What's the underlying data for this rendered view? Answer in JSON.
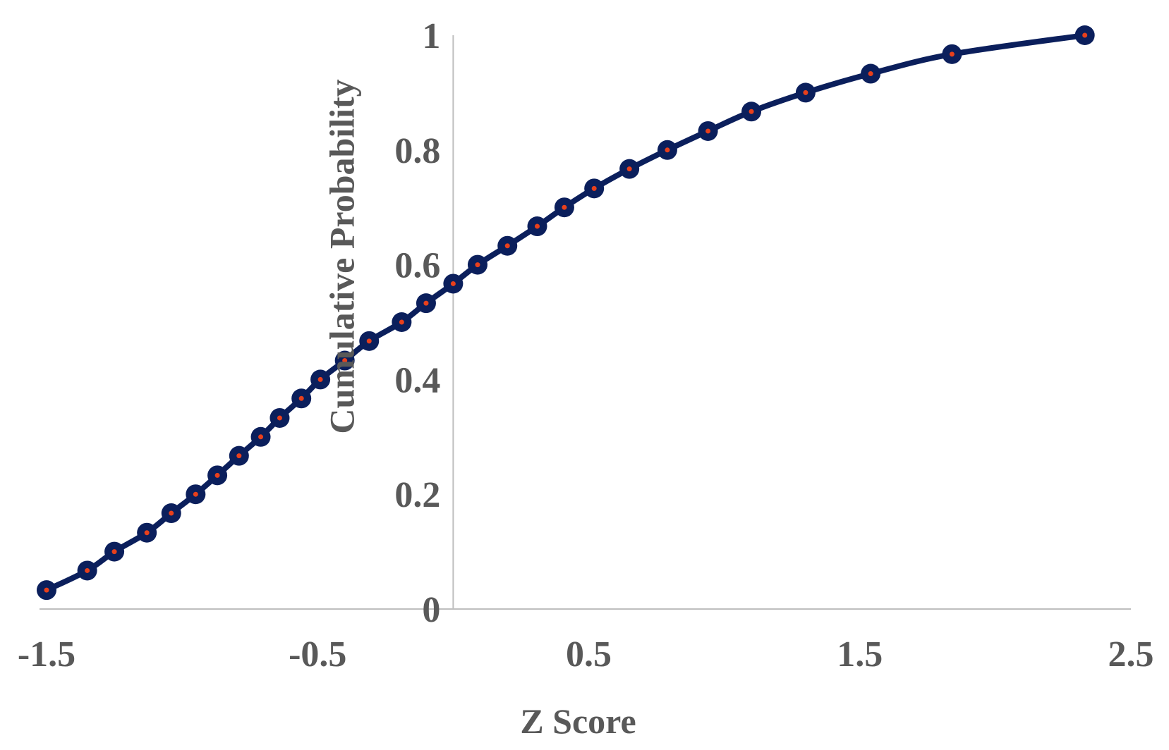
{
  "chart_data": {
    "type": "scatter",
    "title": "",
    "xlabel": "Z Score",
    "ylabel": "Cumulative Probability",
    "xlim": [
      -1.5,
      2.5
    ],
    "ylim": [
      0,
      1
    ],
    "x_ticks": [
      "-1.5",
      "-0.5",
      "0.5",
      "1.5",
      "2.5"
    ],
    "y_ticks": [
      "0",
      "0.2",
      "0.4",
      "0.6",
      "0.8",
      "1"
    ],
    "grid": false,
    "legend": "none",
    "series": [
      {
        "line_color": "#0b1f5c",
        "marker_color": "#0b1f5c",
        "marker_center_color": "#e8401c",
        "x": [
          -1.5,
          -1.35,
          -1.25,
          -1.13,
          -1.04,
          -0.95,
          -0.87,
          -0.79,
          -0.71,
          -0.64,
          -0.56,
          -0.49,
          -0.4,
          -0.31,
          -0.19,
          -0.1,
          0.0,
          0.09,
          0.2,
          0.31,
          0.41,
          0.52,
          0.65,
          0.79,
          0.94,
          1.1,
          1.3,
          1.54,
          1.84,
          2.33
        ],
        "y": [
          0.033,
          0.067,
          0.1,
          0.133,
          0.167,
          0.2,
          0.233,
          0.267,
          0.3,
          0.333,
          0.367,
          0.4,
          0.433,
          0.467,
          0.5,
          0.533,
          0.567,
          0.6,
          0.633,
          0.667,
          0.7,
          0.733,
          0.767,
          0.8,
          0.833,
          0.867,
          0.9,
          0.933,
          0.967,
          1.0
        ]
      }
    ]
  }
}
